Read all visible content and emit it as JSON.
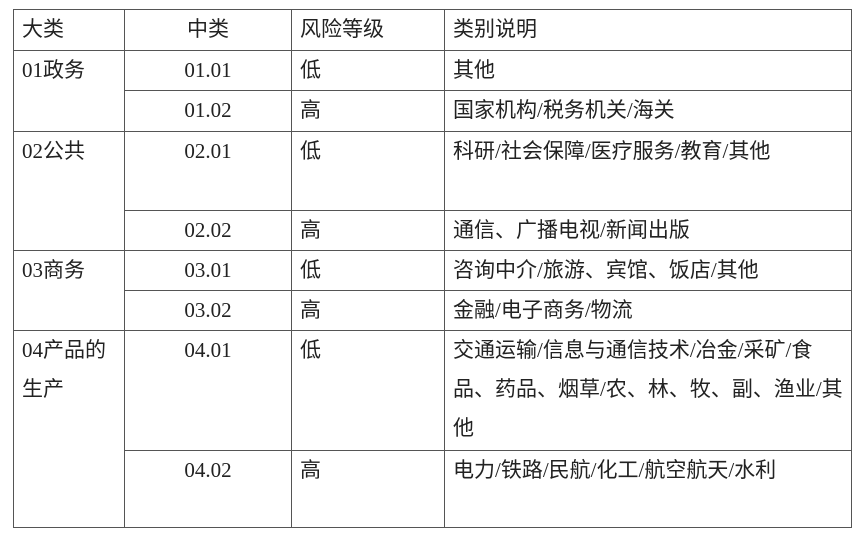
{
  "headers": [
    "大类",
    "中类",
    "风险等级",
    "类别说明"
  ],
  "groups": [
    {
      "category": "01政务",
      "rows": [
        {
          "code": "01.01",
          "risk": "低",
          "desc": "其他"
        },
        {
          "code": "01.02",
          "risk": "高",
          "desc": "国家机构/税务机关/海关"
        }
      ]
    },
    {
      "category": "02公共",
      "rows": [
        {
          "code": "02.01",
          "risk": "低",
          "desc": "科研/社会保障/医疗服务/教育/其他"
        },
        {
          "code": "02.02",
          "risk": "高",
          "desc": "通信、广播电视/新闻出版"
        }
      ]
    },
    {
      "category": "03商务",
      "rows": [
        {
          "code": "03.01",
          "risk": "低",
          "desc": "咨询中介/旅游、宾馆、饭店/其他"
        },
        {
          "code": "03.02",
          "risk": "高",
          "desc": "金融/电子商务/物流"
        }
      ]
    },
    {
      "category": "04产品的生产",
      "rows": [
        {
          "code": "04.01",
          "risk": "低",
          "desc": "交通运输/信息与通信技术/冶金/采矿/食品、药品、烟草/农、林、牧、副、渔业/其他"
        },
        {
          "code": "04.02",
          "risk": "高",
          "desc": "电力/铁路/民航/化工/航空航天/水利"
        }
      ]
    }
  ]
}
